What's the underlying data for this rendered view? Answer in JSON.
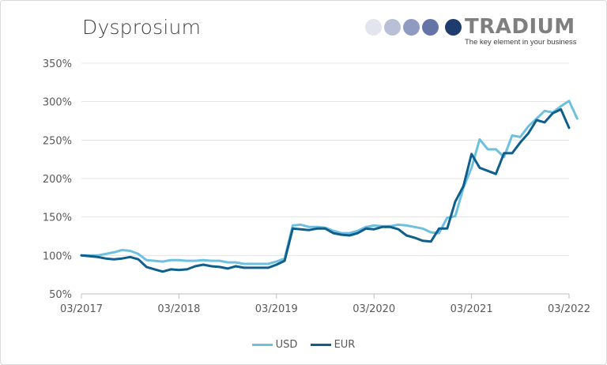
{
  "title": "Dysprosium",
  "logo": {
    "brand": "TRADIUM",
    "tagline": "The key element in your business",
    "dot_colors": [
      "#e3e5ee",
      "#b9bfd6",
      "#8f9bc0",
      "#6574a6",
      "#1f3c6e"
    ]
  },
  "chart_data": {
    "type": "line",
    "title": "Dysprosium",
    "xlabel": "",
    "ylabel": "",
    "ylim": [
      50,
      350
    ],
    "yticks": [
      50,
      100,
      150,
      200,
      250,
      300,
      350
    ],
    "ytick_labels": [
      "50%",
      "100%",
      "150%",
      "200%",
      "250%",
      "300%",
      "350%"
    ],
    "xlim": [
      0,
      60
    ],
    "xticks": [
      0,
      12,
      24,
      36,
      48,
      60
    ],
    "xtick_labels": [
      "03/2017",
      "03/2018",
      "03/2019",
      "03/2020",
      "03/2021",
      "03/2022"
    ],
    "grid": true,
    "legend_position": "bottom",
    "series": [
      {
        "name": "USD",
        "color": "#6dc0e0",
        "points": [
          [
            0,
            100
          ],
          [
            1,
            100
          ],
          [
            2,
            100
          ],
          [
            3,
            102
          ],
          [
            4,
            104
          ],
          [
            5,
            107
          ],
          [
            6,
            106
          ],
          [
            7,
            102
          ],
          [
            8,
            94
          ],
          [
            9,
            93
          ],
          [
            10,
            92
          ],
          [
            11,
            94
          ],
          [
            12,
            94
          ],
          [
            13,
            93
          ],
          [
            14,
            93
          ],
          [
            15,
            94
          ],
          [
            16,
            93
          ],
          [
            17,
            93
          ],
          [
            18,
            91
          ],
          [
            19,
            91
          ],
          [
            20,
            89
          ],
          [
            21,
            89
          ],
          [
            22,
            89
          ],
          [
            23,
            89
          ],
          [
            24,
            92
          ],
          [
            25,
            96
          ],
          [
            26,
            139
          ],
          [
            27,
            140
          ],
          [
            28,
            137
          ],
          [
            29,
            137
          ],
          [
            30,
            136
          ],
          [
            31,
            132
          ],
          [
            32,
            129
          ],
          [
            33,
            129
          ],
          [
            34,
            132
          ],
          [
            35,
            137
          ],
          [
            36,
            139
          ],
          [
            37,
            138
          ],
          [
            38,
            138
          ],
          [
            39,
            140
          ],
          [
            40,
            139
          ],
          [
            41,
            137
          ],
          [
            42,
            135
          ],
          [
            43,
            130
          ],
          [
            44,
            129
          ],
          [
            45,
            149
          ],
          [
            46,
            151
          ],
          [
            47,
            188
          ],
          [
            48,
            214
          ],
          [
            49,
            251
          ],
          [
            50,
            238
          ],
          [
            51,
            238
          ],
          [
            52,
            228
          ],
          [
            53,
            256
          ],
          [
            54,
            254
          ],
          [
            55,
            268
          ],
          [
            56,
            278
          ],
          [
            57,
            288
          ],
          [
            58,
            286
          ],
          [
            59,
            294
          ],
          [
            60,
            301
          ],
          [
            61,
            278
          ]
        ]
      },
      {
        "name": "EUR",
        "color": "#0f5e8c",
        "points": [
          [
            0,
            100
          ],
          [
            1,
            99
          ],
          [
            2,
            98
          ],
          [
            3,
            96
          ],
          [
            4,
            95
          ],
          [
            5,
            96
          ],
          [
            6,
            98
          ],
          [
            7,
            95
          ],
          [
            8,
            85
          ],
          [
            9,
            82
          ],
          [
            10,
            79
          ],
          [
            11,
            82
          ],
          [
            12,
            81
          ],
          [
            13,
            82
          ],
          [
            14,
            86
          ],
          [
            15,
            88
          ],
          [
            16,
            86
          ],
          [
            17,
            85
          ],
          [
            18,
            83
          ],
          [
            19,
            86
          ],
          [
            20,
            84
          ],
          [
            21,
            84
          ],
          [
            22,
            84
          ],
          [
            23,
            84
          ],
          [
            24,
            88
          ],
          [
            25,
            93
          ],
          [
            26,
            135
          ],
          [
            27,
            134
          ],
          [
            28,
            133
          ],
          [
            29,
            135
          ],
          [
            30,
            135
          ],
          [
            31,
            129
          ],
          [
            32,
            127
          ],
          [
            33,
            126
          ],
          [
            34,
            129
          ],
          [
            35,
            135
          ],
          [
            36,
            134
          ],
          [
            37,
            137
          ],
          [
            38,
            137
          ],
          [
            39,
            134
          ],
          [
            40,
            126
          ],
          [
            41,
            123
          ],
          [
            42,
            119
          ],
          [
            43,
            118
          ],
          [
            44,
            135
          ],
          [
            45,
            135
          ],
          [
            46,
            170
          ],
          [
            47,
            190
          ],
          [
            48,
            232
          ],
          [
            49,
            214
          ],
          [
            50,
            210
          ],
          [
            51,
            206
          ],
          [
            52,
            233
          ],
          [
            53,
            233
          ],
          [
            54,
            247
          ],
          [
            55,
            259
          ],
          [
            56,
            276
          ],
          [
            57,
            273
          ],
          [
            58,
            285
          ],
          [
            59,
            290
          ],
          [
            60,
            266
          ]
        ]
      }
    ]
  }
}
